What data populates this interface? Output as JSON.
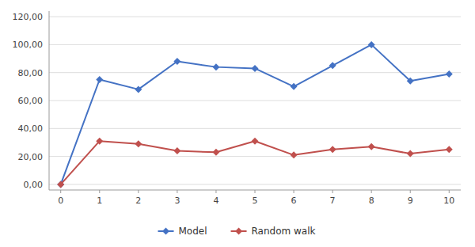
{
  "chart_data": {
    "type": "line",
    "x": [
      0,
      1,
      2,
      3,
      4,
      5,
      6,
      7,
      8,
      9,
      10
    ],
    "series": [
      {
        "name": "Model",
        "color": "#4472C4",
        "marker": "diamond",
        "values": [
          0,
          75,
          68,
          88,
          84,
          83,
          70,
          85,
          100,
          74,
          79
        ]
      },
      {
        "name": "Random walk",
        "color": "#C0504D",
        "marker": "diamond",
        "values": [
          0,
          31,
          29,
          24,
          23,
          31,
          21,
          25,
          27,
          22,
          25
        ]
      }
    ],
    "xlim": [
      -0.3,
      10.3
    ],
    "ylim": [
      -4,
      124
    ],
    "xticks": [
      0,
      1,
      2,
      3,
      4,
      5,
      6,
      7,
      8,
      9,
      10
    ],
    "yticks": [
      {
        "value": 0,
        "label": "0,00"
      },
      {
        "value": 20,
        "label": "20,00"
      },
      {
        "value": 40,
        "label": "40,00"
      },
      {
        "value": 60,
        "label": "60,00"
      },
      {
        "value": 80,
        "label": "80,00"
      },
      {
        "value": 100,
        "label": "100,00"
      },
      {
        "value": 120,
        "label": "120,00"
      }
    ],
    "grid": true,
    "legend": "bottom"
  }
}
